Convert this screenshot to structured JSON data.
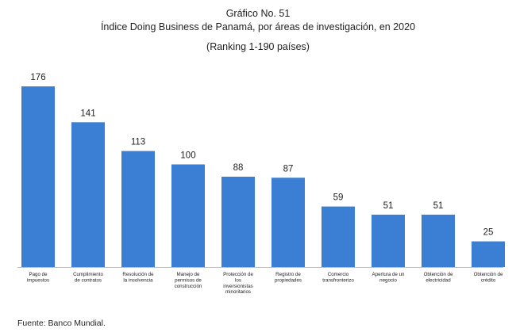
{
  "chart_data": {
    "type": "bar",
    "title_line1": "Gráfico No. 51",
    "title_line2": "Índice Doing Business de Panamá, por áreas de investigación, en 2020",
    "subtitle": "(Ranking 1-190 países)",
    "xlabel": "",
    "ylabel": "",
    "ylim": [
      0,
      190
    ],
    "grid": false,
    "categories": [
      [
        "Pago de",
        "impuestos"
      ],
      [
        "Cumplimiento",
        "de contratos"
      ],
      [
        "Resolución de",
        "la insolvencia"
      ],
      [
        "Manejo de",
        "permisos de",
        "construcción"
      ],
      [
        "Protección de",
        "los",
        "inversionistas",
        "minoritarios"
      ],
      [
        "Registro de",
        "propiedades"
      ],
      [
        "Comercio",
        "transfronterizo"
      ],
      [
        "Apertura de un",
        "negocio"
      ],
      [
        "Obtención de",
        "electricidad"
      ],
      [
        "Obtención de",
        "crédito"
      ]
    ],
    "values": [
      176,
      141,
      113,
      100,
      88,
      87,
      59,
      51,
      51,
      25
    ],
    "bar_color": "#3a7fd4"
  },
  "source": "Fuente: Banco Mundial."
}
